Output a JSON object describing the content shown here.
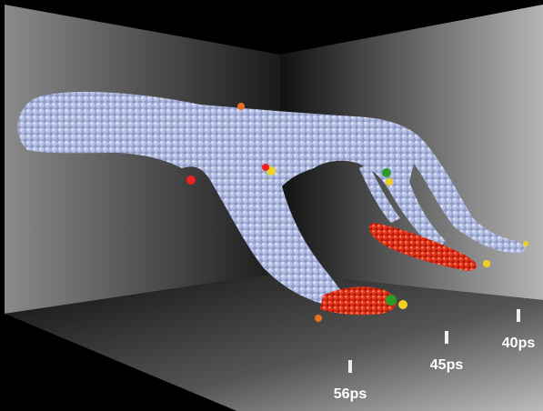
{
  "time_labels": [
    "56ps",
    "45ps",
    "40ps"
  ]
}
